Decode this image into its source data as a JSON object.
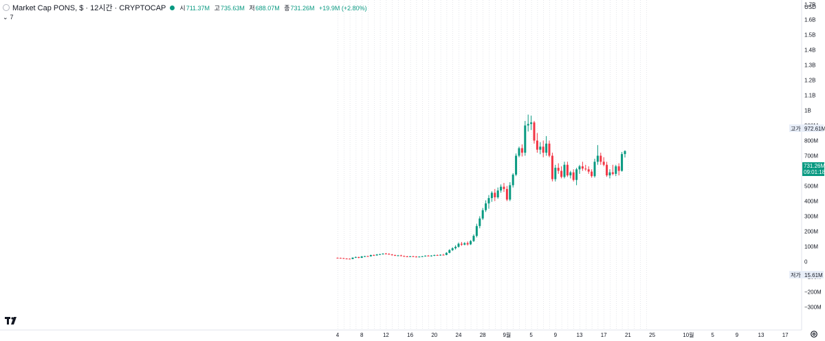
{
  "header": {
    "symbol_line": "Market Cap PONS, $ · 12시간 · CRYPTOCAP",
    "open_label": "시",
    "open_value": "711.37M",
    "high_label": "고",
    "high_value": "735.63M",
    "low_label": "저",
    "low_value": "688.07M",
    "close_label": "종",
    "close_value": "731.26M",
    "change": "+19.9M (+2.80%)",
    "collapse_count": "7"
  },
  "price_axis": {
    "currency": "USD",
    "ticks": [
      "1.7B",
      "1.6B",
      "1.5B",
      "1.4B",
      "1.3B",
      "1.2B",
      "1.1B",
      "1B",
      "900M",
      "800M",
      "700M",
      "600M",
      "500M",
      "400M",
      "300M",
      "200M",
      "100M",
      "0",
      "−100M",
      "−200M",
      "−300M"
    ],
    "high_tag_label": "고가",
    "high_tag_value": "972.61M",
    "low_tag_label": "저가",
    "low_tag_value": "15.61M",
    "last_price": "731.26M",
    "countdown": "09:01:18"
  },
  "time_axis": {
    "ticks": [
      "4",
      "8",
      "12",
      "16",
      "20",
      "24",
      "28",
      "9월",
      "5",
      "9",
      "13",
      "17",
      "21",
      "25",
      "10월",
      "5",
      "9",
      "13",
      "17"
    ]
  },
  "colors": {
    "up": "#089981",
    "down": "#f23645"
  },
  "chart_data": {
    "type": "candlestick",
    "title": "Market Cap PONS, $ · 12시간 · CRYPTOCAP",
    "unit": "M USD",
    "ylim": [
      -300,
      1700
    ],
    "x_start": "8월 4",
    "interval": "12h",
    "candles": [
      {
        "o": 25,
        "h": 27,
        "l": 22,
        "c": 24
      },
      {
        "o": 24,
        "h": 26,
        "l": 21,
        "c": 23
      },
      {
        "o": 23,
        "h": 25,
        "l": 18,
        "c": 20
      },
      {
        "o": 20,
        "h": 22,
        "l": 17,
        "c": 19
      },
      {
        "o": 19,
        "h": 21,
        "l": 16,
        "c": 17
      },
      {
        "o": 17,
        "h": 28,
        "l": 16,
        "c": 26
      },
      {
        "o": 26,
        "h": 33,
        "l": 24,
        "c": 30
      },
      {
        "o": 30,
        "h": 32,
        "l": 22,
        "c": 25
      },
      {
        "o": 25,
        "h": 37,
        "l": 24,
        "c": 34
      },
      {
        "o": 34,
        "h": 38,
        "l": 30,
        "c": 36
      },
      {
        "o": 36,
        "h": 39,
        "l": 32,
        "c": 35
      },
      {
        "o": 35,
        "h": 46,
        "l": 33,
        "c": 43
      },
      {
        "o": 43,
        "h": 47,
        "l": 38,
        "c": 41
      },
      {
        "o": 41,
        "h": 50,
        "l": 39,
        "c": 47
      },
      {
        "o": 47,
        "h": 52,
        "l": 44,
        "c": 49
      },
      {
        "o": 49,
        "h": 55,
        "l": 46,
        "c": 53
      },
      {
        "o": 53,
        "h": 57,
        "l": 48,
        "c": 51
      },
      {
        "o": 51,
        "h": 55,
        "l": 45,
        "c": 47
      },
      {
        "o": 47,
        "h": 50,
        "l": 40,
        "c": 43
      },
      {
        "o": 43,
        "h": 46,
        "l": 37,
        "c": 40
      },
      {
        "o": 40,
        "h": 44,
        "l": 36,
        "c": 41
      },
      {
        "o": 41,
        "h": 45,
        "l": 35,
        "c": 37
      },
      {
        "o": 37,
        "h": 40,
        "l": 31,
        "c": 34
      },
      {
        "o": 34,
        "h": 38,
        "l": 30,
        "c": 33
      },
      {
        "o": 33,
        "h": 37,
        "l": 30,
        "c": 35
      },
      {
        "o": 35,
        "h": 38,
        "l": 31,
        "c": 33
      },
      {
        "o": 33,
        "h": 36,
        "l": 28,
        "c": 30
      },
      {
        "o": 30,
        "h": 35,
        "l": 28,
        "c": 33
      },
      {
        "o": 33,
        "h": 37,
        "l": 30,
        "c": 35
      },
      {
        "o": 35,
        "h": 41,
        "l": 33,
        "c": 39
      },
      {
        "o": 39,
        "h": 43,
        "l": 34,
        "c": 36
      },
      {
        "o": 36,
        "h": 42,
        "l": 33,
        "c": 40
      },
      {
        "o": 40,
        "h": 46,
        "l": 37,
        "c": 43
      },
      {
        "o": 43,
        "h": 47,
        "l": 39,
        "c": 41
      },
      {
        "o": 41,
        "h": 48,
        "l": 39,
        "c": 45
      },
      {
        "o": 45,
        "h": 51,
        "l": 41,
        "c": 44
      },
      {
        "o": 44,
        "h": 62,
        "l": 42,
        "c": 58
      },
      {
        "o": 58,
        "h": 82,
        "l": 55,
        "c": 76
      },
      {
        "o": 76,
        "h": 95,
        "l": 70,
        "c": 88
      },
      {
        "o": 88,
        "h": 108,
        "l": 80,
        "c": 98
      },
      {
        "o": 98,
        "h": 126,
        "l": 92,
        "c": 118
      },
      {
        "o": 118,
        "h": 130,
        "l": 104,
        "c": 112
      },
      {
        "o": 112,
        "h": 128,
        "l": 108,
        "c": 122
      },
      {
        "o": 122,
        "h": 133,
        "l": 106,
        "c": 114
      },
      {
        "o": 114,
        "h": 142,
        "l": 110,
        "c": 136
      },
      {
        "o": 136,
        "h": 180,
        "l": 130,
        "c": 170
      },
      {
        "o": 170,
        "h": 250,
        "l": 160,
        "c": 235
      },
      {
        "o": 235,
        "h": 300,
        "l": 220,
        "c": 285
      },
      {
        "o": 285,
        "h": 355,
        "l": 275,
        "c": 340
      },
      {
        "o": 340,
        "h": 405,
        "l": 328,
        "c": 385
      },
      {
        "o": 385,
        "h": 440,
        "l": 350,
        "c": 420
      },
      {
        "o": 420,
        "h": 465,
        "l": 395,
        "c": 455
      },
      {
        "o": 455,
        "h": 480,
        "l": 400,
        "c": 425
      },
      {
        "o": 425,
        "h": 490,
        "l": 415,
        "c": 470
      },
      {
        "o": 470,
        "h": 510,
        "l": 455,
        "c": 495
      },
      {
        "o": 495,
        "h": 520,
        "l": 460,
        "c": 480
      },
      {
        "o": 480,
        "h": 500,
        "l": 400,
        "c": 410
      },
      {
        "o": 410,
        "h": 525,
        "l": 400,
        "c": 505
      },
      {
        "o": 505,
        "h": 585,
        "l": 490,
        "c": 575
      },
      {
        "o": 575,
        "h": 715,
        "l": 565,
        "c": 700
      },
      {
        "o": 700,
        "h": 760,
        "l": 690,
        "c": 750
      },
      {
        "o": 750,
        "h": 775,
        "l": 695,
        "c": 720
      },
      {
        "o": 720,
        "h": 930,
        "l": 700,
        "c": 900
      },
      {
        "o": 900,
        "h": 972,
        "l": 860,
        "c": 910
      },
      {
        "o": 910,
        "h": 965,
        "l": 870,
        "c": 920
      },
      {
        "o": 920,
        "h": 930,
        "l": 780,
        "c": 800
      },
      {
        "o": 800,
        "h": 850,
        "l": 720,
        "c": 740
      },
      {
        "o": 740,
        "h": 790,
        "l": 710,
        "c": 760
      },
      {
        "o": 760,
        "h": 800,
        "l": 690,
        "c": 720
      },
      {
        "o": 720,
        "h": 830,
        "l": 700,
        "c": 780
      },
      {
        "o": 780,
        "h": 800,
        "l": 690,
        "c": 700
      },
      {
        "o": 700,
        "h": 720,
        "l": 530,
        "c": 545
      },
      {
        "o": 545,
        "h": 640,
        "l": 530,
        "c": 620
      },
      {
        "o": 620,
        "h": 650,
        "l": 580,
        "c": 600
      },
      {
        "o": 600,
        "h": 630,
        "l": 550,
        "c": 560
      },
      {
        "o": 560,
        "h": 660,
        "l": 550,
        "c": 640
      },
      {
        "o": 640,
        "h": 660,
        "l": 560,
        "c": 570
      },
      {
        "o": 570,
        "h": 600,
        "l": 550,
        "c": 590
      },
      {
        "o": 590,
        "h": 610,
        "l": 530,
        "c": 540
      },
      {
        "o": 540,
        "h": 620,
        "l": 505,
        "c": 610
      },
      {
        "o": 610,
        "h": 640,
        "l": 580,
        "c": 630
      },
      {
        "o": 630,
        "h": 660,
        "l": 600,
        "c": 615
      },
      {
        "o": 615,
        "h": 640,
        "l": 600,
        "c": 610
      },
      {
        "o": 610,
        "h": 630,
        "l": 580,
        "c": 595
      },
      {
        "o": 595,
        "h": 610,
        "l": 555,
        "c": 565
      },
      {
        "o": 565,
        "h": 680,
        "l": 555,
        "c": 660
      },
      {
        "o": 660,
        "h": 770,
        "l": 640,
        "c": 700
      },
      {
        "o": 700,
        "h": 720,
        "l": 640,
        "c": 660
      },
      {
        "o": 660,
        "h": 690,
        "l": 630,
        "c": 640
      },
      {
        "o": 640,
        "h": 660,
        "l": 560,
        "c": 570
      },
      {
        "o": 570,
        "h": 610,
        "l": 550,
        "c": 590
      },
      {
        "o": 590,
        "h": 640,
        "l": 570,
        "c": 580
      },
      {
        "o": 580,
        "h": 640,
        "l": 565,
        "c": 630
      },
      {
        "o": 630,
        "h": 650,
        "l": 570,
        "c": 600
      },
      {
        "o": 600,
        "h": 725,
        "l": 595,
        "c": 711
      },
      {
        "o": 711,
        "h": 736,
        "l": 688,
        "c": 731
      }
    ]
  }
}
